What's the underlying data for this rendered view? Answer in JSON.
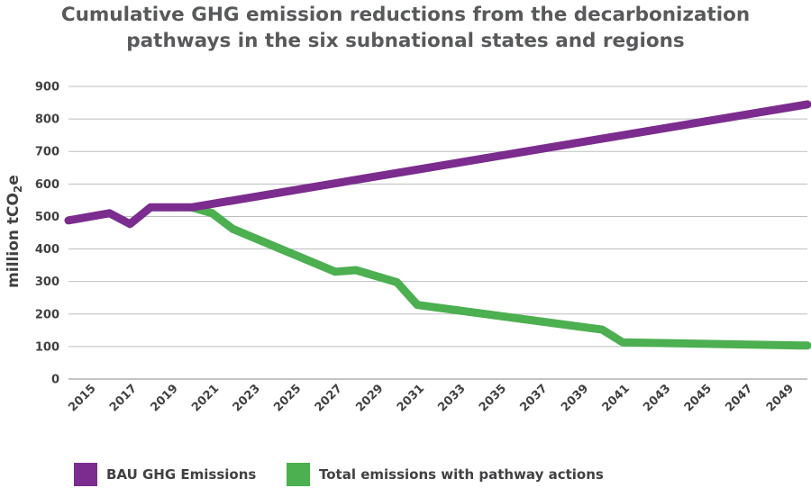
{
  "chart_data": {
    "type": "line",
    "title_line1": "Cumulative GHG emission reductions from the decarbonization",
    "title_line2": "pathways in the six subnational states and regions",
    "ylabel_main": "million tCO",
    "ylabel_sub": "2",
    "ylabel_tail": "e",
    "ylim": [
      0,
      900
    ],
    "yticks": [
      0,
      100,
      200,
      300,
      400,
      500,
      600,
      700,
      800,
      900
    ],
    "xlim": [
      2014,
      2050
    ],
    "xticks": [
      2015,
      2017,
      2019,
      2021,
      2023,
      2025,
      2027,
      2029,
      2031,
      2033,
      2035,
      2037,
      2039,
      2041,
      2043,
      2045,
      2047,
      2049
    ],
    "grid": true,
    "legend_position": "bottom-left",
    "series": [
      {
        "name": "BAU GHG Emissions",
        "color": "#7b2c8e",
        "points": [
          [
            2014,
            488
          ],
          [
            2016,
            510
          ],
          [
            2017,
            477
          ],
          [
            2018,
            528
          ],
          [
            2020,
            528
          ],
          [
            2050,
            845
          ]
        ]
      },
      {
        "name": "Total emissions with pathway actions",
        "color": "#4caf50",
        "points": [
          [
            2020,
            528
          ],
          [
            2021,
            510
          ],
          [
            2022,
            462
          ],
          [
            2027,
            330
          ],
          [
            2028,
            335
          ],
          [
            2030,
            298
          ],
          [
            2031,
            228
          ],
          [
            2040,
            152
          ],
          [
            2041,
            113
          ],
          [
            2050,
            103
          ]
        ]
      }
    ]
  }
}
